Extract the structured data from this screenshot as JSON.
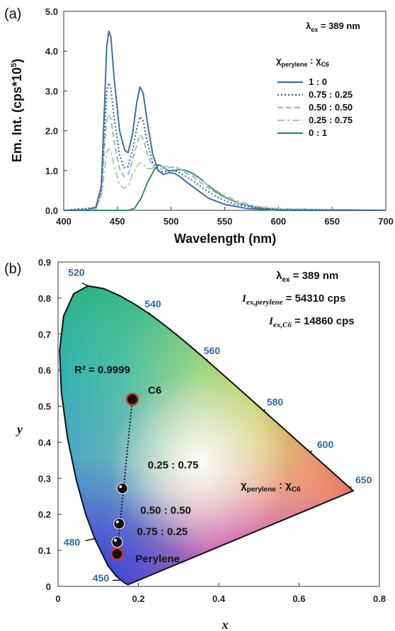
{
  "chart_data": [
    {
      "panel": "(a)",
      "type": "line",
      "xlabel": "Wavelength (nm)",
      "ylabel": "Em. Int. (cps*10",
      "ylabel_sup": "5",
      "ylabel_close": ")",
      "xlim": [
        400,
        700
      ],
      "ylim": [
        0,
        5
      ],
      "xticks": [
        "400",
        "450",
        "500",
        "550",
        "600",
        "650",
        "700"
      ],
      "yticks": [
        "0.0",
        "1.0",
        "2.0",
        "3.0",
        "4.0",
        "5.0"
      ],
      "annotation": {
        "main": "λ",
        "sub": "ex",
        "rest": " = 389 nm"
      },
      "legend_title": {
        "chi": "χ",
        "sub1": "perylene",
        "colon": " : χ",
        "sub2": "C6"
      },
      "legend_position": "right",
      "series": [
        {
          "name": "1 : 0",
          "color": "#3d6fa8",
          "dash": "",
          "points": [
            [
              400,
              0
            ],
            [
              420,
              0
            ],
            [
              430,
              0.08
            ],
            [
              435,
              0.6
            ],
            [
              438,
              2.6
            ],
            [
              440,
              4.1
            ],
            [
              442,
              4.5
            ],
            [
              444,
              4.35
            ],
            [
              447,
              3.3
            ],
            [
              452,
              2.0
            ],
            [
              457,
              1.5
            ],
            [
              460,
              1.45
            ],
            [
              464,
              1.9
            ],
            [
              468,
              2.7
            ],
            [
              471,
              3.1
            ],
            [
              474,
              2.95
            ],
            [
              478,
              2.2
            ],
            [
              483,
              1.4
            ],
            [
              488,
              1.0
            ],
            [
              493,
              0.9
            ],
            [
              498,
              0.95
            ],
            [
              503,
              0.93
            ],
            [
              508,
              0.85
            ],
            [
              515,
              0.7
            ],
            [
              525,
              0.5
            ],
            [
              535,
              0.3
            ],
            [
              550,
              0.15
            ],
            [
              570,
              0.05
            ],
            [
              600,
              0.0
            ],
            [
              700,
              0
            ]
          ]
        },
        {
          "name": "0.75 : 0.25",
          "color": "#2e5f99",
          "dash": "2,3",
          "points": [
            [
              400,
              0
            ],
            [
              430,
              0.07
            ],
            [
              435,
              0.5
            ],
            [
              438,
              2.0
            ],
            [
              440,
              2.95
            ],
            [
              442,
              3.2
            ],
            [
              444,
              3.05
            ],
            [
              447,
              2.3
            ],
            [
              452,
              1.4
            ],
            [
              456,
              1.07
            ],
            [
              460,
              1.1
            ],
            [
              464,
              1.5
            ],
            [
              468,
              2.05
            ],
            [
              471,
              2.35
            ],
            [
              474,
              2.25
            ],
            [
              478,
              1.7
            ],
            [
              483,
              1.2
            ],
            [
              488,
              1.0
            ],
            [
              493,
              0.97
            ],
            [
              500,
              1.0
            ],
            [
              506,
              0.97
            ],
            [
              512,
              0.88
            ],
            [
              520,
              0.75
            ],
            [
              530,
              0.55
            ],
            [
              545,
              0.3
            ],
            [
              560,
              0.15
            ],
            [
              580,
              0.06
            ],
            [
              600,
              0.02
            ],
            [
              700,
              0
            ]
          ]
        },
        {
          "name": "0.50 : 0.50",
          "color": "#9fb4cf",
          "dash": "8,4",
          "points": [
            [
              400,
              0
            ],
            [
              430,
              0.05
            ],
            [
              435,
              0.45
            ],
            [
              438,
              1.6
            ],
            [
              440,
              2.25
            ],
            [
              442,
              2.4
            ],
            [
              444,
              2.3
            ],
            [
              447,
              1.7
            ],
            [
              452,
              1.05
            ],
            [
              456,
              0.85
            ],
            [
              460,
              0.9
            ],
            [
              464,
              1.25
            ],
            [
              468,
              1.65
            ],
            [
              471,
              1.9
            ],
            [
              474,
              1.8
            ],
            [
              478,
              1.4
            ],
            [
              483,
              1.1
            ],
            [
              488,
              1.02
            ],
            [
              493,
              1.05
            ],
            [
              500,
              1.08
            ],
            [
              506,
              1.05
            ],
            [
              512,
              0.97
            ],
            [
              520,
              0.85
            ],
            [
              530,
              0.65
            ],
            [
              545,
              0.38
            ],
            [
              560,
              0.2
            ],
            [
              580,
              0.08
            ],
            [
              600,
              0.03
            ],
            [
              700,
              0
            ]
          ]
        },
        {
          "name": "0.25 : 0.75",
          "color": "#b8c9b0",
          "dash": "10,4,3,4",
          "points": [
            [
              400,
              0
            ],
            [
              430,
              0.04
            ],
            [
              435,
              0.35
            ],
            [
              438,
              1.0
            ],
            [
              440,
              1.45
            ],
            [
              442,
              1.55
            ],
            [
              444,
              1.48
            ],
            [
              447,
              1.1
            ],
            [
              452,
              0.65
            ],
            [
              456,
              0.55
            ],
            [
              460,
              0.62
            ],
            [
              464,
              0.9
            ],
            [
              468,
              1.1
            ],
            [
              471,
              1.2
            ],
            [
              474,
              1.17
            ],
            [
              478,
              1.05
            ],
            [
              483,
              1.05
            ],
            [
              488,
              1.1
            ],
            [
              493,
              1.1
            ],
            [
              500,
              1.1
            ],
            [
              506,
              1.07
            ],
            [
              512,
              1.0
            ],
            [
              520,
              0.9
            ],
            [
              530,
              0.72
            ],
            [
              545,
              0.45
            ],
            [
              560,
              0.25
            ],
            [
              580,
              0.1
            ],
            [
              600,
              0.04
            ],
            [
              700,
              0
            ]
          ]
        },
        {
          "name": "0 : 1",
          "color": "#2f8a78",
          "dash": "",
          "points": [
            [
              400,
              0
            ],
            [
              460,
              0
            ],
            [
              466,
              0.05
            ],
            [
              472,
              0.3
            ],
            [
              478,
              0.7
            ],
            [
              484,
              1.0
            ],
            [
              488,
              1.15
            ],
            [
              492,
              1.1
            ],
            [
              497,
              1.0
            ],
            [
              502,
              1.0
            ],
            [
              508,
              1.02
            ],
            [
              514,
              1.0
            ],
            [
              520,
              0.93
            ],
            [
              528,
              0.78
            ],
            [
              538,
              0.55
            ],
            [
              550,
              0.33
            ],
            [
              565,
              0.16
            ],
            [
              580,
              0.07
            ],
            [
              600,
              0.02
            ],
            [
              700,
              0
            ]
          ]
        }
      ]
    },
    {
      "panel": "(b)",
      "type": "scatter",
      "xlabel": "x",
      "ylabel": "y",
      "xlim": [
        0,
        0.8
      ],
      "ylim": [
        0,
        0.9
      ],
      "xticks": [
        "0",
        "0.2",
        "0.4",
        "0.6",
        "0.8"
      ],
      "yticks": [
        "0",
        "0.1",
        "0.2",
        "0.3",
        "0.4",
        "0.5",
        "0.6",
        "0.7",
        "0.8",
        "0.9"
      ],
      "annotations": {
        "lex_main": "λ",
        "lex_sub": "ex",
        "lex_rest": " = 389 nm",
        "per_main": "I",
        "per_sub": "ex,perylene",
        "per_rest": " = 54310 cps",
        "c6_main": "I",
        "c6_sub": "ex,C6",
        "c6_rest": " = 14860 cps",
        "r2": "R² = 0.9999",
        "ratio_chi": "χ",
        "ratio_sub1": "perylene",
        "ratio_colon": " : χ",
        "ratio_sub2": "C6"
      },
      "wavelength_labels": [
        {
          "label": "520",
          "x": 0.0743,
          "y": 0.8338
        },
        {
          "label": "540",
          "x": 0.2296,
          "y": 0.7543
        },
        {
          "label": "560",
          "x": 0.3731,
          "y": 0.6245
        },
        {
          "label": "580",
          "x": 0.5125,
          "y": 0.4866
        },
        {
          "label": "600",
          "x": 0.627,
          "y": 0.3725
        },
        {
          "label": "650",
          "x": 0.726,
          "y": 0.274
        },
        {
          "label": "480",
          "x": 0.0913,
          "y": 0.1327
        },
        {
          "label": "450",
          "x": 0.1566,
          "y": 0.0177
        }
      ],
      "locus": [
        [
          0.1741,
          0.005
        ],
        [
          0.1666,
          0.0089
        ],
        [
          0.1566,
          0.0177
        ],
        [
          0.144,
          0.0297
        ],
        [
          0.1241,
          0.0578
        ],
        [
          0.0913,
          0.1327
        ],
        [
          0.0687,
          0.2007
        ],
        [
          0.0454,
          0.295
        ],
        [
          0.0235,
          0.4127
        ],
        [
          0.0082,
          0.5384
        ],
        [
          0.0039,
          0.6548
        ],
        [
          0.0139,
          0.7502
        ],
        [
          0.0389,
          0.812
        ],
        [
          0.0743,
          0.8338
        ],
        [
          0.1142,
          0.8262
        ],
        [
          0.1547,
          0.8059
        ],
        [
          0.1929,
          0.7816
        ],
        [
          0.2296,
          0.7543
        ],
        [
          0.2658,
          0.7243
        ],
        [
          0.3016,
          0.6923
        ],
        [
          0.3373,
          0.6589
        ],
        [
          0.3731,
          0.6245
        ],
        [
          0.4087,
          0.5896
        ],
        [
          0.4441,
          0.5547
        ],
        [
          0.4788,
          0.5202
        ],
        [
          0.5125,
          0.4866
        ],
        [
          0.5448,
          0.4544
        ],
        [
          0.5752,
          0.4242
        ],
        [
          0.6029,
          0.3965
        ],
        [
          0.627,
          0.3725
        ],
        [
          0.6482,
          0.3514
        ],
        [
          0.6658,
          0.334
        ],
        [
          0.6801,
          0.3197
        ],
        [
          0.6915,
          0.3083
        ],
        [
          0.7079,
          0.292
        ],
        [
          0.7347,
          0.2653
        ]
      ],
      "series": [
        {
          "name": "C6",
          "x": 0.185,
          "y": 0.519,
          "marker": "red-ring"
        },
        {
          "name": "0.25 : 0.75",
          "x": 0.16,
          "y": 0.272,
          "marker": "black"
        },
        {
          "name": "0.50 : 0.50",
          "x": 0.152,
          "y": 0.174,
          "marker": "black"
        },
        {
          "name": "0.75 : 0.25",
          "x": 0.147,
          "y": 0.123,
          "marker": "black"
        },
        {
          "name": "Perylene",
          "x": 0.147,
          "y": 0.09,
          "marker": "red-ring"
        }
      ]
    }
  ]
}
